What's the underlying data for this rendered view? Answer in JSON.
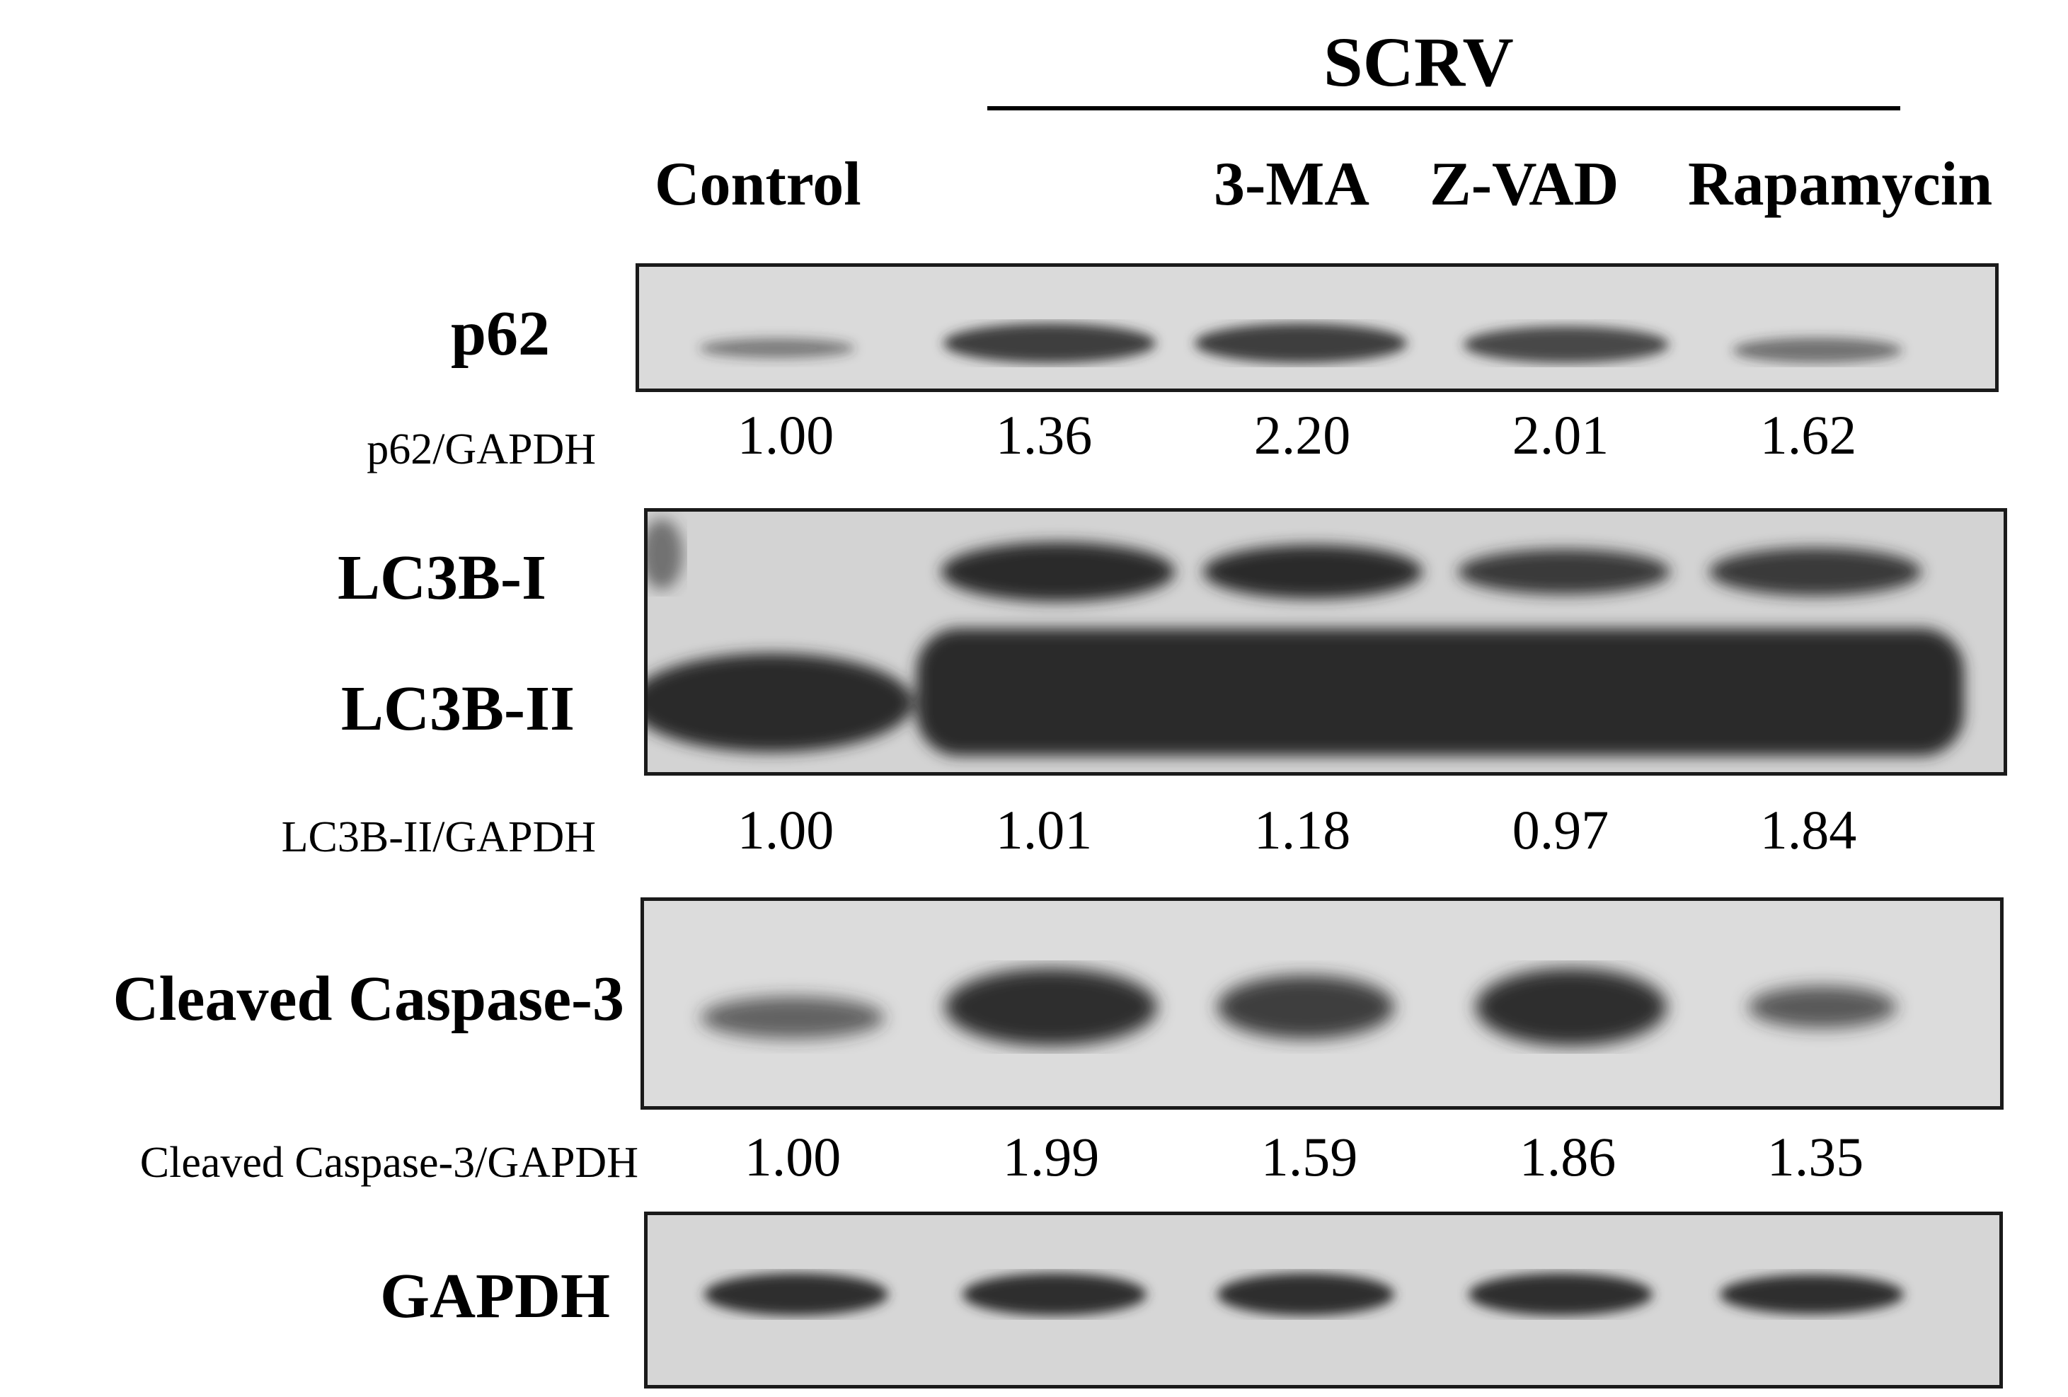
{
  "group_label": "SCRV",
  "lanes": [
    "Control",
    "",
    "3-MA",
    "Z-VAD",
    "Rapamycin"
  ],
  "proteins": {
    "p62": "p62",
    "lc3b_i": "LC3B-I",
    "lc3b_ii": "LC3B-II",
    "cleaved_caspase3": "Cleaved Caspase-3",
    "gapdh": "GAPDH"
  },
  "quantification": [
    {
      "label": "p62/GAPDH",
      "values": [
        "1.00",
        "1.36",
        "2.20",
        "2.01",
        "1.62"
      ]
    },
    {
      "label": "LC3B-II/GAPDH",
      "values": [
        "1.00",
        "1.01",
        "1.18",
        "0.97",
        "1.84"
      ]
    },
    {
      "label": "Cleaved Caspase-3/GAPDH",
      "values": [
        "1.00",
        "1.99",
        "1.59",
        "1.86",
        "1.35"
      ]
    }
  ],
  "colors": {
    "membrane": "#d9d9d9",
    "band": "#2e2e2e",
    "border": "#1a1a1a"
  }
}
